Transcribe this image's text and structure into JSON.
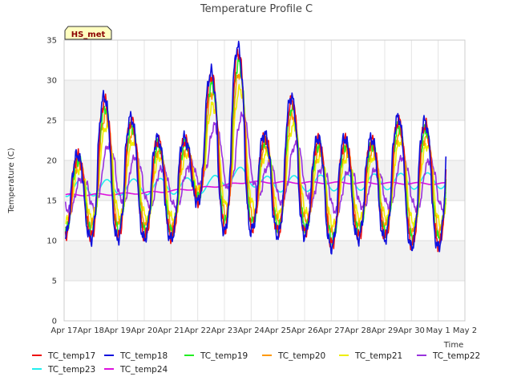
{
  "chart_data": {
    "type": "line",
    "title": "Temperature Profile C",
    "xlabel": "Time",
    "ylabel": "Temperature (C)",
    "badge": "HS_met",
    "ylim": [
      0,
      35
    ],
    "yticks": [
      0,
      5,
      10,
      15,
      20,
      25,
      30,
      35
    ],
    "xlim": [
      0,
      15
    ],
    "x_ticks": [
      {
        "x": 0,
        "label": "Apr 17"
      },
      {
        "x": 1,
        "label": "Apr 18"
      },
      {
        "x": 2,
        "label": "Apr 19"
      },
      {
        "x": 3,
        "label": "Apr 20"
      },
      {
        "x": 4,
        "label": "Apr 21"
      },
      {
        "x": 5,
        "label": "Apr 22"
      },
      {
        "x": 6,
        "label": "Apr 23"
      },
      {
        "x": 7,
        "label": "Apr 24"
      },
      {
        "x": 8,
        "label": "Apr 25"
      },
      {
        "x": 9,
        "label": "Apr 26"
      },
      {
        "x": 10,
        "label": "Apr 27"
      },
      {
        "x": 11,
        "label": "Apr 28"
      },
      {
        "x": 12,
        "label": "Apr 29"
      },
      {
        "x": 13,
        "label": "Apr 30"
      },
      {
        "x": 14,
        "label": "May 1"
      },
      {
        "x": 15,
        "label": "May 2"
      }
    ],
    "grid": true,
    "band_colors": [
      "#ffffff",
      "#f2f2f2"
    ],
    "legend_position": "bottom",
    "x_unit": "days since Apr 17",
    "daily_extremes": {
      "days": [
        0,
        1,
        2,
        3,
        4,
        5,
        6,
        7,
        8,
        9,
        10,
        11,
        12,
        13
      ],
      "max": [
        20.5,
        27.5,
        25.0,
        22.5,
        22.5,
        30.5,
        33.5,
        23.0,
        27.5,
        22.5,
        22.5,
        22.5,
        25.0,
        24.5
      ],
      "min": [
        10.5,
        10.5,
        10.5,
        10.5,
        10.5,
        15.0,
        11.5,
        11.5,
        11.0,
        11.0,
        9.5,
        10.5,
        10.5,
        9.5
      ],
      "last_day_max": 24.5
    },
    "series": [
      {
        "name": "TC_temp17",
        "color": "#ee1111"
      },
      {
        "name": "TC_temp18",
        "color": "#1111dd"
      },
      {
        "name": "TC_temp19",
        "color": "#22ee22"
      },
      {
        "name": "TC_temp20",
        "color": "#ff9900"
      },
      {
        "name": "TC_temp21",
        "color": "#eeee00"
      },
      {
        "name": "TC_temp22",
        "color": "#9933dd"
      },
      {
        "name": "TC_temp23",
        "color": "#22eeee"
      },
      {
        "name": "TC_temp24",
        "color": "#dd11dd"
      }
    ],
    "series_profile": {
      "TC_temp17": {
        "amp": 1.0,
        "lag": 0.02,
        "smooth": 0
      },
      "TC_temp18": {
        "amp": 1.05,
        "lag": 0.0,
        "smooth": 0
      },
      "TC_temp19": {
        "amp": 0.9,
        "lag": 0.03,
        "smooth": 0
      },
      "TC_temp20": {
        "amp": 0.8,
        "lag": 0.05,
        "smooth": 0
      },
      "TC_temp21": {
        "amp": 0.65,
        "lag": 0.08,
        "smooth": 0
      },
      "TC_temp22": {
        "amp": 0.4,
        "lag": 0.18,
        "smooth": 0
      },
      "TC_temp23": {
        "mean_start": 16.5,
        "mean_end": 17.5,
        "amp": 1.0,
        "period": 1.0
      },
      "TC_temp24": {
        "start": 15.7,
        "mid_day": 6.8,
        "mid": 17.3,
        "end": 17.1
      }
    }
  }
}
